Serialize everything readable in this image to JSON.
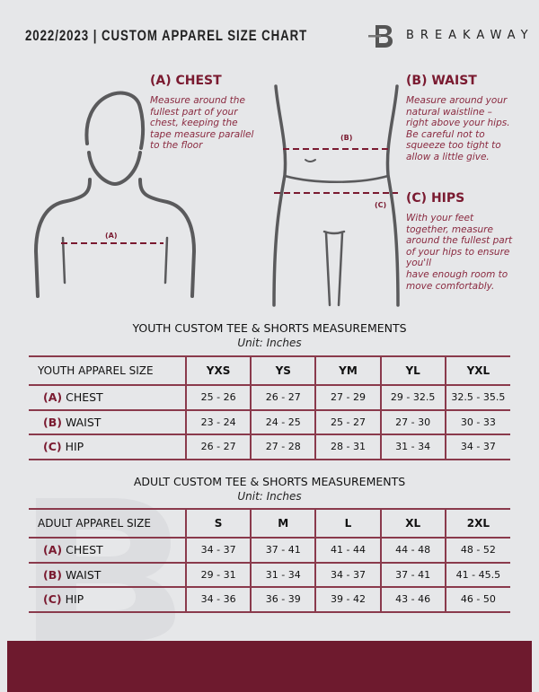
{
  "header": {
    "title": "2022/2023  |  CUSTOM APPAREL SIZE CHART",
    "brand": "BREAKAWAY",
    "logo_letter": "B"
  },
  "guides": {
    "chest": {
      "heading": "(A) CHEST",
      "label": "(A)",
      "lines": [
        "Measure around the",
        "fullest part of your",
        "chest, keeping the",
        "tape measure parallel",
        "to the floor"
      ]
    },
    "waist": {
      "heading": "(B) WAIST",
      "label": "(B)",
      "lines": [
        "Measure around your",
        "natural waistline –",
        "right above your hips.",
        "Be careful not to",
        "squeeze too tight to",
        "allow a little give."
      ]
    },
    "hips": {
      "heading": "(C) HIPS",
      "label": "(C)",
      "lines": [
        "With your feet",
        "together, measure",
        "around the fullest part",
        "of your hips to ensure",
        "you'll",
        "have enough room to",
        "move comfortably."
      ]
    }
  },
  "youth": {
    "title": "YOUTH CUSTOM TEE & SHORTS MEASUREMENTS",
    "unit": "Unit: Inches",
    "header": [
      "YOUTH APPAREL SIZE",
      "YXS",
      "YS",
      "YM",
      "YL",
      "YXL"
    ],
    "rows": [
      {
        "tag": "(A)",
        "name": "CHEST",
        "values": [
          "25 - 26",
          "26 - 27",
          "27 - 29",
          "29 - 32.5",
          "32.5 - 35.5"
        ]
      },
      {
        "tag": "(B)",
        "name": "WAIST",
        "values": [
          "23 - 24",
          "24 - 25",
          "25 - 27",
          "27 - 30",
          "30 - 33"
        ]
      },
      {
        "tag": "(C)",
        "name": "HIP",
        "values": [
          "26 - 27",
          "27 - 28",
          "28 - 31",
          "31 - 34",
          "34 - 37"
        ]
      }
    ]
  },
  "adult": {
    "title": "ADULT CUSTOM TEE & SHORTS MEASUREMENTS",
    "unit": "Unit: Inches",
    "header": [
      "ADULT APPAREL SIZE",
      "S",
      "M",
      "L",
      "XL",
      "2XL"
    ],
    "rows": [
      {
        "tag": "(A)",
        "name": "CHEST",
        "values": [
          "34 - 37",
          "37 - 41",
          "41 - 44",
          "44 - 48",
          "48 - 52"
        ]
      },
      {
        "tag": "(B)",
        "name": "WAIST",
        "values": [
          "29 - 31",
          "31 - 34",
          "34 - 37",
          "37 - 41",
          "41 - 45.5"
        ]
      },
      {
        "tag": "(C)",
        "name": "HIP",
        "values": [
          "34 - 36",
          "36 - 39",
          "39 - 42",
          "43 - 46",
          "46 - 50"
        ]
      }
    ]
  },
  "colors": {
    "accent": "#7a1a30",
    "footer": "#6e1a2e",
    "background": "#e6e7e9"
  }
}
